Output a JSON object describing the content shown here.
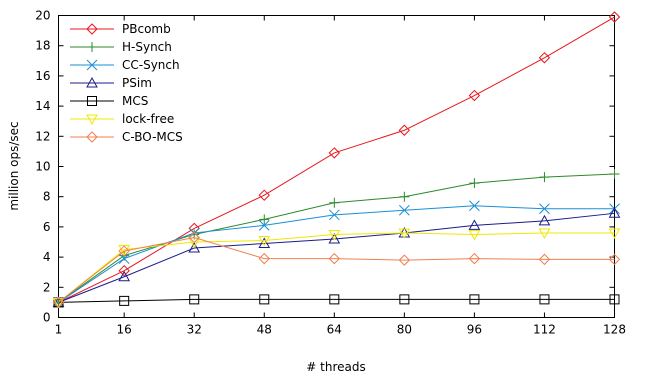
{
  "chart_data": {
    "type": "line",
    "title": "",
    "xlabel": "# threads",
    "ylabel": "million ops/sec",
    "x": [
      1,
      16,
      32,
      48,
      64,
      80,
      96,
      112,
      128
    ],
    "xticks": [
      "1",
      "16",
      "32",
      "48",
      "64",
      "80",
      "96",
      "112",
      "128"
    ],
    "yticks": [
      "0",
      "2",
      "4",
      "6",
      "8",
      "10",
      "12",
      "14",
      "16",
      "18",
      "20"
    ],
    "xlim": [
      1,
      128
    ],
    "ylim": [
      0,
      20
    ],
    "grid": false,
    "legend": "top-left",
    "series": [
      {
        "name": "PBcomb",
        "color": "#e8171c",
        "marker": "diamond",
        "values": [
          1.0,
          3.1,
          5.9,
          8.1,
          10.9,
          12.4,
          14.7,
          17.2,
          19.9
        ]
      },
      {
        "name": "H-Synch",
        "color": "#2a8a2a",
        "marker": "plus",
        "values": [
          1.0,
          4.1,
          5.5,
          6.5,
          7.6,
          8.0,
          8.9,
          9.3,
          9.5
        ]
      },
      {
        "name": "CC-Synch",
        "color": "#1a8fd6",
        "marker": "cross",
        "values": [
          1.0,
          3.9,
          5.6,
          6.1,
          6.8,
          7.1,
          7.4,
          7.2,
          7.2
        ]
      },
      {
        "name": "PSim",
        "color": "#1c1c8a",
        "marker": "triangle-up",
        "values": [
          1.0,
          2.7,
          4.6,
          4.9,
          5.2,
          5.6,
          6.1,
          6.4,
          6.9
        ]
      },
      {
        "name": "MCS",
        "color": "#000000",
        "marker": "square",
        "values": [
          1.0,
          1.1,
          1.2,
          1.2,
          1.2,
          1.2,
          1.2,
          1.2,
          1.2
        ]
      },
      {
        "name": "lock-free",
        "color": "#f0e800",
        "marker": "triangle-down",
        "values": [
          1.0,
          4.5,
          5.0,
          5.1,
          5.5,
          5.6,
          5.5,
          5.6,
          5.6
        ]
      },
      {
        "name": "C-BO-MCS",
        "color": "#f08050",
        "marker": "diamond",
        "values": [
          1.0,
          4.4,
          5.3,
          3.9,
          3.9,
          3.8,
          3.9,
          3.85,
          3.85
        ]
      }
    ]
  }
}
